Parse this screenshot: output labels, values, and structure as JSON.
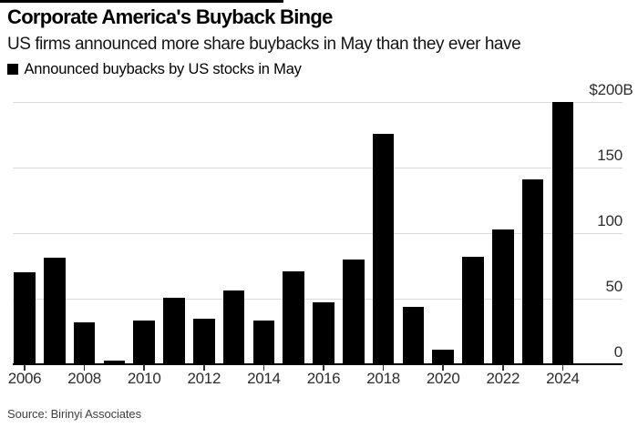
{
  "header": {
    "title": "Corporate America's Buyback Binge",
    "subtitle": "US firms announced more share buybacks in May than they ever have"
  },
  "legend": {
    "label": "Announced buybacks by US stocks in May",
    "swatch_color": "#000000"
  },
  "source": "Source: Birinyi Associates",
  "colors": {
    "background": "#ffffff",
    "bar": "#000000",
    "gridline": "#d9d9d9",
    "axis_line": "#000000",
    "axis_label": "#2d2d2d"
  },
  "chart_data": {
    "type": "bar",
    "title": "Corporate America's Buyback Binge",
    "subtitle": "US firms announced more share buybacks in May than they ever have",
    "series_label": "Announced buybacks by US stocks in May",
    "y_axis_unit": "USD billions",
    "categories": [
      2006,
      2007,
      2008,
      2009,
      2010,
      2011,
      2012,
      2013,
      2014,
      2015,
      2016,
      2017,
      2018,
      2019,
      2020,
      2021,
      2022,
      2023,
      2024
    ],
    "values": [
      70,
      81,
      32,
      3,
      33,
      51,
      35,
      56,
      33,
      71,
      47,
      80,
      176,
      44,
      11,
      82,
      103,
      141,
      200
    ],
    "x_tick_labels": [
      "2006",
      "2008",
      "2010",
      "2012",
      "2014",
      "2016",
      "2018",
      "2020",
      "2022",
      "2024"
    ],
    "y_ticks": [
      0,
      50,
      100,
      150,
      200
    ],
    "y_tick_labels": [
      "0",
      "50",
      "100",
      "150",
      "$200B"
    ],
    "ylim": [
      0,
      200
    ],
    "grid": true,
    "gridlines_horizontal_only": true,
    "legend_position": "top-left",
    "bar_color": "#000000"
  }
}
